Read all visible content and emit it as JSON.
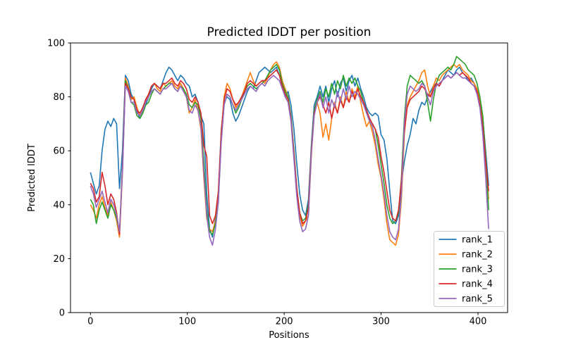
{
  "figure": {
    "background": "#ffffff",
    "frame_color": "#000000"
  },
  "chart_data": {
    "type": "line",
    "title": "Predicted lDDT per position",
    "xlabel": "Positions",
    "ylabel": "Predicted lDDT",
    "xlim": [
      -20.6,
      430.6
    ],
    "ylim": [
      0,
      100
    ],
    "xticks": [
      0,
      100,
      200,
      300,
      400
    ],
    "yticks": [
      0,
      20,
      40,
      60,
      80,
      100
    ],
    "grid": false,
    "legend": {
      "position": "lower right",
      "border_color": "#cccccc",
      "entries": [
        "rank_1",
        "rank_2",
        "rank_3",
        "rank_4",
        "rank_5"
      ]
    },
    "x_start": 0,
    "x_step": 3,
    "series": [
      {
        "name": "rank_1",
        "color": "#1f77b4",
        "values": [
          52,
          48,
          44,
          47,
          60,
          68,
          71,
          69,
          72,
          70,
          46,
          60,
          88,
          86,
          81,
          79,
          75,
          72,
          74,
          77,
          80,
          83,
          85,
          84,
          83,
          86,
          89,
          91,
          90,
          88,
          86,
          88,
          87,
          85,
          84,
          80,
          81,
          78,
          73,
          70,
          44,
          31,
          28,
          35,
          44,
          68,
          78,
          80,
          79,
          74,
          71,
          73,
          76,
          79,
          82,
          84,
          83,
          86,
          89,
          90,
          91,
          90,
          89,
          90,
          91,
          88,
          84,
          80,
          82,
          77,
          68,
          55,
          44,
          38,
          36,
          42,
          62,
          77,
          80,
          84,
          80,
          84,
          78,
          83,
          86,
          80,
          85,
          87,
          82,
          86,
          88,
          84,
          87,
          83,
          80,
          76,
          74,
          73,
          74,
          73,
          66,
          64,
          57,
          45,
          34,
          33,
          36,
          48,
          56,
          62,
          66,
          72,
          70,
          75,
          78,
          77,
          80,
          82,
          84,
          85,
          84,
          86,
          88,
          90,
          89,
          88,
          90,
          91,
          89,
          88,
          86,
          87,
          85,
          82,
          78,
          72,
          60,
          47
        ]
      },
      {
        "name": "rank_2",
        "color": "#ff7f0e",
        "values": [
          40,
          38,
          35,
          40,
          43,
          39,
          36,
          41,
          38,
          34,
          28,
          52,
          87,
          84,
          79,
          80,
          76,
          73,
          75,
          78,
          81,
          84,
          85,
          83,
          82,
          85,
          84,
          85,
          86,
          84,
          83,
          85,
          83,
          80,
          74,
          76,
          79,
          75,
          68,
          50,
          35,
          31,
          30,
          34,
          43,
          67,
          80,
          85,
          83,
          79,
          76,
          78,
          80,
          83,
          86,
          89,
          86,
          84,
          85,
          86,
          85,
          87,
          90,
          92,
          93,
          91,
          86,
          83,
          80,
          72,
          58,
          45,
          36,
          32,
          34,
          36,
          58,
          74,
          78,
          74,
          65,
          70,
          64,
          72,
          78,
          74,
          80,
          76,
          82,
          78,
          83,
          80,
          84,
          78,
          73,
          69,
          71,
          67,
          62,
          55,
          50,
          42,
          33,
          27,
          26,
          25,
          29,
          42,
          66,
          77,
          80,
          82,
          84,
          86,
          89,
          90,
          84,
          80,
          84,
          87,
          86,
          88,
          89,
          90,
          91,
          92,
          91,
          92,
          90,
          89,
          88,
          86,
          85,
          83,
          79,
          71,
          56,
          42
        ]
      },
      {
        "name": "rank_3",
        "color": "#2ca02c",
        "values": [
          42,
          40,
          33,
          38,
          41,
          38,
          35,
          40,
          38,
          35,
          30,
          54,
          86,
          83,
          78,
          77,
          73,
          72,
          74,
          77,
          78,
          81,
          83,
          82,
          81,
          83,
          84,
          85,
          85,
          83,
          82,
          84,
          83,
          81,
          77,
          76,
          78,
          77,
          72,
          56,
          38,
          30,
          29,
          33,
          41,
          64,
          77,
          81,
          80,
          77,
          74,
          76,
          79,
          82,
          84,
          85,
          84,
          83,
          84,
          85,
          86,
          88,
          90,
          91,
          92,
          90,
          85,
          82,
          80,
          73,
          60,
          46,
          37,
          34,
          35,
          40,
          61,
          75,
          79,
          82,
          78,
          83,
          80,
          85,
          81,
          86,
          83,
          88,
          84,
          87,
          85,
          87,
          84,
          82,
          78,
          75,
          72,
          70,
          68,
          62,
          55,
          48,
          40,
          35,
          33,
          34,
          37,
          50,
          72,
          84,
          88,
          87,
          86,
          85,
          86,
          84,
          78,
          71,
          79,
          85,
          88,
          89,
          90,
          91,
          90,
          92,
          95,
          94,
          93,
          92,
          90,
          89,
          88,
          85,
          80,
          73,
          58,
          38
        ]
      },
      {
        "name": "rank_4",
        "color": "#d62728",
        "values": [
          48,
          46,
          41,
          43,
          52,
          47,
          40,
          44,
          42,
          37,
          29,
          53,
          85,
          83,
          80,
          79,
          75,
          74,
          76,
          79,
          81,
          84,
          85,
          84,
          83,
          85,
          85,
          86,
          87,
          85,
          84,
          86,
          85,
          83,
          79,
          78,
          80,
          78,
          74,
          62,
          58,
          36,
          33,
          36,
          45,
          66,
          79,
          83,
          82,
          79,
          77,
          78,
          80,
          82,
          85,
          86,
          85,
          84,
          85,
          86,
          86,
          87,
          88,
          89,
          90,
          88,
          84,
          81,
          79,
          72,
          59,
          46,
          37,
          33,
          34,
          39,
          60,
          74,
          78,
          80,
          77,
          74,
          78,
          72,
          77,
          74,
          79,
          76,
          80,
          78,
          82,
          79,
          83,
          80,
          78,
          75,
          72,
          70,
          68,
          65,
          58,
          52,
          45,
          38,
          35,
          34,
          38,
          49,
          67,
          76,
          79,
          80,
          81,
          82,
          84,
          83,
          81,
          80,
          83,
          85,
          84,
          86,
          87,
          88,
          87,
          88,
          89,
          88,
          89,
          88,
          87,
          85,
          84,
          82,
          77,
          69,
          56,
          45
        ]
      },
      {
        "name": "rank_5",
        "color": "#9467bd",
        "values": [
          47,
          44,
          39,
          42,
          45,
          41,
          37,
          42,
          40,
          36,
          30,
          52,
          84,
          82,
          78,
          78,
          74,
          73,
          75,
          78,
          80,
          82,
          83,
          82,
          81,
          83,
          83,
          84,
          85,
          83,
          82,
          84,
          82,
          80,
          75,
          74,
          77,
          75,
          69,
          52,
          36,
          28,
          25,
          31,
          41,
          63,
          77,
          81,
          80,
          77,
          75,
          77,
          79,
          81,
          83,
          84,
          83,
          82,
          84,
          85,
          84,
          86,
          87,
          88,
          87,
          86,
          83,
          80,
          78,
          71,
          57,
          43,
          34,
          30,
          31,
          36,
          59,
          73,
          78,
          81,
          76,
          80,
          74,
          79,
          76,
          82,
          78,
          83,
          79,
          84,
          80,
          82,
          81,
          79,
          77,
          74,
          71,
          69,
          64,
          57,
          51,
          44,
          36,
          30,
          28,
          27,
          31,
          44,
          70,
          81,
          84,
          83,
          82,
          83,
          85,
          84,
          80,
          77,
          82,
          84,
          85,
          86,
          87,
          88,
          87,
          88,
          89,
          88,
          87,
          87,
          86,
          85,
          84,
          81,
          76,
          66,
          50,
          31
        ]
      }
    ]
  }
}
